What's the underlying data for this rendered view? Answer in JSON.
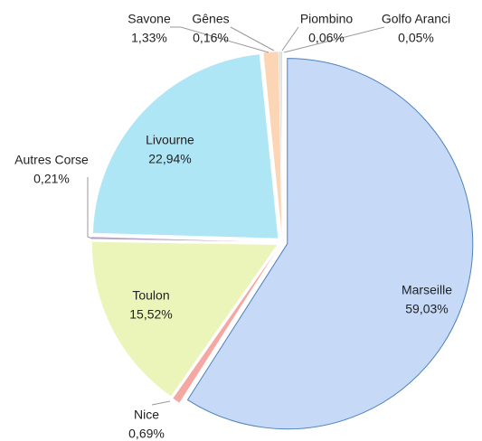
{
  "chart_data": {
    "type": "pie",
    "categories": [
      "Marseille",
      "Nice",
      "Toulon",
      "Autres Corse",
      "Livourne",
      "Savone",
      "Gênes",
      "Piombino",
      "Golfo Aranci"
    ],
    "values": [
      59.03,
      0.69,
      15.52,
      0.21,
      22.94,
      1.33,
      0.16,
      0.06,
      0.05
    ],
    "value_labels": [
      "59,03%",
      "0,69%",
      "15,52%",
      "0,21%",
      "22,94%",
      "1,33%",
      "0,16%",
      "0,06%",
      "0,05%"
    ],
    "colors": [
      "#c6d9f7",
      "#f4a7a3",
      "#ebf5b9",
      "#b3a2c7",
      "#aee6f6",
      "#fcd5b5",
      "#d9d9d9",
      "#9bbb59",
      "#4f6228"
    ]
  }
}
